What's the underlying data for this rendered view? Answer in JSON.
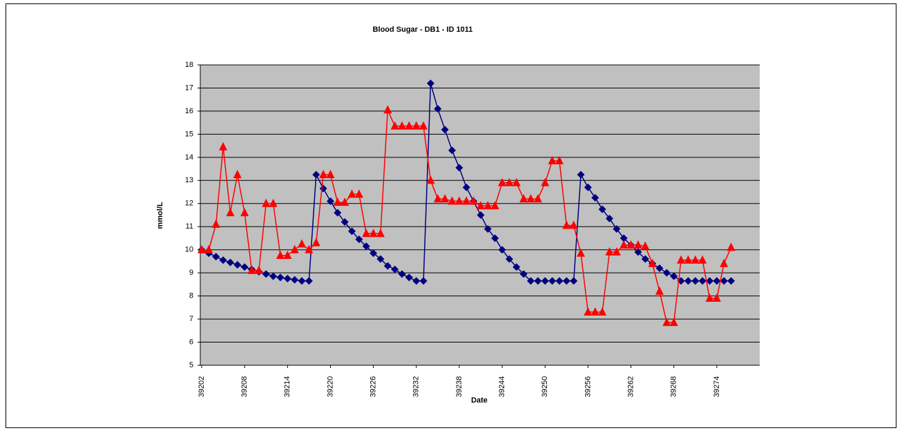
{
  "chart_data": {
    "type": "line",
    "title": "Blood Sugar - DB1 - ID 1011",
    "x_label": "Date",
    "y_label": "mmol/L",
    "x": [
      39202,
      39203,
      39204,
      39205,
      39206,
      39207,
      39208,
      39209,
      39210,
      39211,
      39212,
      39213,
      39214,
      39215,
      39216,
      39217,
      39218,
      39219,
      39220,
      39221,
      39222,
      39223,
      39224,
      39225,
      39226,
      39227,
      39228,
      39229,
      39230,
      39231,
      39232,
      39233,
      39234,
      39235,
      39236,
      39237,
      39238,
      39239,
      39240,
      39241,
      39242,
      39243,
      39244,
      39245,
      39246,
      39247,
      39248,
      39249,
      39250,
      39251,
      39252,
      39253,
      39254,
      39255,
      39256,
      39257,
      39258,
      39259,
      39260,
      39261,
      39262,
      39263,
      39264,
      39265,
      39266,
      39267,
      39268,
      39269,
      39270,
      39271,
      39272,
      39273,
      39274,
      39275,
      39276
    ],
    "series": [
      {
        "color": "#000080",
        "marker": "diamond",
        "values": [
          10.0,
          9.85,
          9.7,
          9.55,
          9.45,
          9.35,
          9.25,
          9.15,
          9.05,
          8.95,
          8.85,
          8.8,
          8.75,
          8.7,
          8.65,
          8.65,
          13.25,
          12.65,
          12.1,
          11.6,
          11.2,
          10.8,
          10.45,
          10.15,
          9.85,
          9.6,
          9.3,
          9.15,
          8.95,
          8.8,
          8.65,
          8.65,
          17.2,
          16.1,
          15.2,
          14.3,
          13.55,
          12.7,
          12.1,
          11.5,
          10.9,
          10.5,
          10.0,
          9.6,
          9.25,
          8.95,
          8.65,
          8.65,
          8.65,
          8.65,
          8.65,
          8.65,
          8.65,
          13.25,
          12.7,
          12.25,
          11.75,
          11.35,
          10.9,
          10.5,
          10.2,
          9.9,
          9.6,
          9.4,
          9.2,
          9.0,
          8.85,
          8.65,
          8.65,
          8.65,
          8.65,
          8.65,
          8.65,
          8.65,
          8.65
        ]
      },
      {
        "color": "#ff0000",
        "marker": "triangle",
        "values": [
          10.0,
          10.0,
          11.1,
          14.45,
          11.6,
          13.25,
          11.6,
          9.1,
          9.1,
          12.0,
          12.0,
          9.75,
          9.75,
          10.0,
          10.25,
          10.0,
          10.3,
          13.25,
          13.25,
          12.05,
          12.05,
          12.4,
          12.4,
          10.7,
          10.7,
          10.7,
          16.05,
          15.35,
          15.35,
          15.35,
          15.35,
          15.35,
          13.0,
          12.2,
          12.2,
          12.1,
          12.1,
          12.1,
          12.1,
          11.9,
          11.9,
          11.9,
          12.9,
          12.9,
          12.9,
          12.2,
          12.2,
          12.2,
          12.9,
          13.85,
          13.85,
          11.05,
          11.05,
          9.85,
          7.3,
          7.3,
          7.3,
          9.9,
          9.9,
          10.2,
          10.2,
          10.2,
          10.15,
          9.4,
          8.2,
          6.85,
          6.85,
          9.55,
          9.55,
          9.55,
          9.55,
          7.9,
          7.9,
          9.4,
          10.1
        ]
      }
    ],
    "xlim": [
      39202,
      39280
    ],
    "xticks": [
      39202,
      39208,
      39214,
      39220,
      39226,
      39232,
      39238,
      39244,
      39250,
      39256,
      39262,
      39268,
      39274
    ],
    "ylim": [
      5,
      18
    ],
    "yticks": [
      5,
      6,
      7,
      8,
      9,
      10,
      11,
      12,
      13,
      14,
      15,
      16,
      17,
      18
    ],
    "grid": true
  }
}
